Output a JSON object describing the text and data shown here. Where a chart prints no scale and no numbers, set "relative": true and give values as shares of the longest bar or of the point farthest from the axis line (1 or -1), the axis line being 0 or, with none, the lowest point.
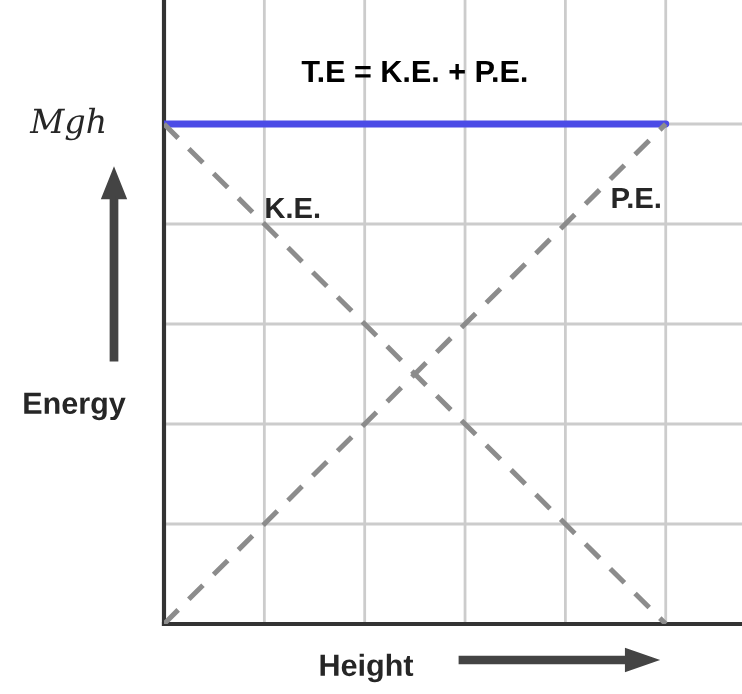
{
  "chart_data": {
    "type": "line",
    "relative": true,
    "xlabel": "Height",
    "ylabel": "Energy",
    "categories": [
      null,
      null,
      null,
      null,
      null,
      null
    ],
    "series": [
      {
        "name": "T.E = K.E. + P.E.",
        "color": "#4b4be6",
        "values": [
          1,
          1,
          1,
          1,
          1,
          1
        ],
        "line_style": "solid"
      },
      {
        "name": "K.E.",
        "color": "#8c8c8c",
        "values": [
          1,
          0.8,
          0.6,
          0.4,
          0.2,
          0
        ],
        "line_style": "dashed"
      },
      {
        "name": "P.E.",
        "color": "#8c8c8c",
        "values": [
          0,
          0.2,
          0.4,
          0.6,
          0.8,
          1
        ],
        "line_style": "dashed"
      }
    ],
    "annotations": [
      "Mgh"
    ],
    "grid": true,
    "legend": false,
    "marker": "none"
  }
}
